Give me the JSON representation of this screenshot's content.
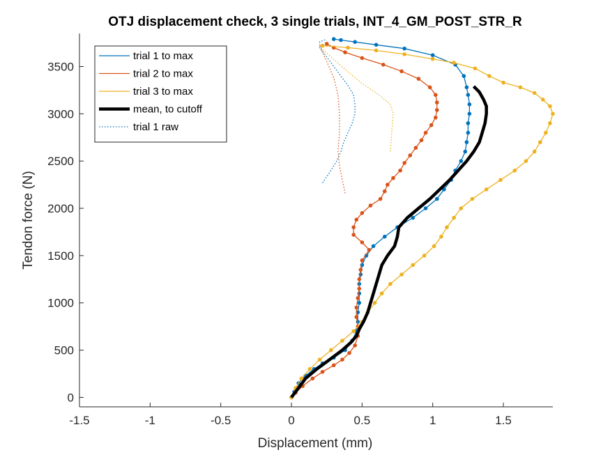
{
  "chart_data": {
    "type": "line",
    "title": "OTJ displacement check, 3 single trials, INT_4_GM_POST_STR_R",
    "xlabel": "Displacement (mm)",
    "ylabel": "Tendon force (N)",
    "xlim": [
      -1.5,
      1.85
    ],
    "ylim": [
      -100,
      3850
    ],
    "xticks": [
      -1.5,
      -1,
      -0.5,
      0,
      0.5,
      1,
      1.5
    ],
    "xtick_labels": [
      "-1.5",
      "-1",
      "-0.5",
      "0",
      "0.5",
      "1",
      "1.5"
    ],
    "yticks": [
      0,
      500,
      1000,
      1500,
      2000,
      2500,
      3000,
      3500
    ],
    "ytick_labels": [
      "0",
      "500",
      "1000",
      "1500",
      "2000",
      "2500",
      "3000",
      "3500"
    ],
    "grid": false,
    "legend_position": "top-left",
    "series": [
      {
        "name": "trial 1 to max",
        "color": "#0072BD",
        "style": "solid-with-markers",
        "points": [
          [
            0,
            0
          ],
          [
            0.02,
            60
          ],
          [
            0.05,
            150
          ],
          [
            0.1,
            230
          ],
          [
            0.16,
            300
          ],
          [
            0.22,
            360
          ],
          [
            0.3,
            420
          ],
          [
            0.38,
            500
          ],
          [
            0.43,
            600
          ],
          [
            0.46,
            700
          ],
          [
            0.47,
            800
          ],
          [
            0.47,
            900
          ],
          [
            0.48,
            1000
          ],
          [
            0.48,
            1100
          ],
          [
            0.48,
            1200
          ],
          [
            0.49,
            1300
          ],
          [
            0.5,
            1400
          ],
          [
            0.53,
            1500
          ],
          [
            0.58,
            1600
          ],
          [
            0.66,
            1700
          ],
          [
            0.75,
            1800
          ],
          [
            0.86,
            1900
          ],
          [
            0.95,
            2000
          ],
          [
            1.03,
            2100
          ],
          [
            1.08,
            2200
          ],
          [
            1.13,
            2300
          ],
          [
            1.16,
            2400
          ],
          [
            1.2,
            2500
          ],
          [
            1.23,
            2600
          ],
          [
            1.24,
            2700
          ],
          [
            1.25,
            2800
          ],
          [
            1.25,
            2900
          ],
          [
            1.26,
            3000
          ],
          [
            1.26,
            3100
          ],
          [
            1.25,
            3200
          ],
          [
            1.24,
            3280
          ],
          [
            1.22,
            3400
          ],
          [
            1.16,
            3520
          ],
          [
            1.0,
            3620
          ],
          [
            0.8,
            3690
          ],
          [
            0.6,
            3730
          ],
          [
            0.45,
            3760
          ],
          [
            0.35,
            3780
          ],
          [
            0.3,
            3790
          ]
        ]
      },
      {
        "name": "trial 2 to max",
        "color": "#D95319",
        "style": "solid-with-markers",
        "points": [
          [
            0,
            0
          ],
          [
            0.03,
            50
          ],
          [
            0.08,
            120
          ],
          [
            0.15,
            200
          ],
          [
            0.22,
            270
          ],
          [
            0.3,
            340
          ],
          [
            0.36,
            400
          ],
          [
            0.41,
            470
          ],
          [
            0.45,
            550
          ],
          [
            0.47,
            650
          ],
          [
            0.47,
            750
          ],
          [
            0.46,
            850
          ],
          [
            0.46,
            950
          ],
          [
            0.47,
            1050
          ],
          [
            0.48,
            1150
          ],
          [
            0.48,
            1250
          ],
          [
            0.49,
            1350
          ],
          [
            0.5,
            1450
          ],
          [
            0.55,
            1560
          ],
          [
            0.5,
            1640
          ],
          [
            0.44,
            1720
          ],
          [
            0.44,
            1800
          ],
          [
            0.46,
            1880
          ],
          [
            0.5,
            1950
          ],
          [
            0.56,
            2030
          ],
          [
            0.63,
            2100
          ],
          [
            0.66,
            2180
          ],
          [
            0.68,
            2250
          ],
          [
            0.72,
            2320
          ],
          [
            0.77,
            2400
          ],
          [
            0.8,
            2480
          ],
          [
            0.84,
            2560
          ],
          [
            0.88,
            2640
          ],
          [
            0.92,
            2720
          ],
          [
            0.95,
            2800
          ],
          [
            0.99,
            2880
          ],
          [
            1.02,
            2960
          ],
          [
            1.03,
            3040
          ],
          [
            1.03,
            3120
          ],
          [
            1.02,
            3200
          ],
          [
            0.98,
            3280
          ],
          [
            0.9,
            3370
          ],
          [
            0.78,
            3450
          ],
          [
            0.65,
            3520
          ],
          [
            0.5,
            3590
          ],
          [
            0.38,
            3650
          ],
          [
            0.3,
            3700
          ],
          [
            0.25,
            3740
          ]
        ]
      },
      {
        "name": "trial 3 to max",
        "color": "#EDB120",
        "style": "solid-with-markers",
        "points": [
          [
            0,
            0
          ],
          [
            0.03,
            100
          ],
          [
            0.07,
            200
          ],
          [
            0.13,
            300
          ],
          [
            0.2,
            400
          ],
          [
            0.28,
            500
          ],
          [
            0.36,
            600
          ],
          [
            0.44,
            700
          ],
          [
            0.5,
            800
          ],
          [
            0.54,
            900
          ],
          [
            0.59,
            1000
          ],
          [
            0.64,
            1100
          ],
          [
            0.7,
            1200
          ],
          [
            0.78,
            1300
          ],
          [
            0.86,
            1400
          ],
          [
            0.94,
            1500
          ],
          [
            1.01,
            1600
          ],
          [
            1.06,
            1700
          ],
          [
            1.1,
            1800
          ],
          [
            1.15,
            1900
          ],
          [
            1.2,
            2000
          ],
          [
            1.28,
            2100
          ],
          [
            1.38,
            2200
          ],
          [
            1.48,
            2300
          ],
          [
            1.58,
            2400
          ],
          [
            1.66,
            2500
          ],
          [
            1.72,
            2600
          ],
          [
            1.76,
            2700
          ],
          [
            1.8,
            2800
          ],
          [
            1.83,
            2900
          ],
          [
            1.85,
            3000
          ],
          [
            1.83,
            3080
          ],
          [
            1.78,
            3150
          ],
          [
            1.72,
            3220
          ],
          [
            1.62,
            3280
          ],
          [
            1.5,
            3330
          ],
          [
            1.4,
            3400
          ],
          [
            1.3,
            3480
          ],
          [
            1.15,
            3540
          ],
          [
            1.0,
            3580
          ],
          [
            0.8,
            3630
          ],
          [
            0.6,
            3670
          ],
          [
            0.4,
            3700
          ],
          [
            0.22,
            3720
          ]
        ]
      },
      {
        "name": "mean, to cutoff",
        "color": "#000000",
        "style": "thick-solid",
        "points": [
          [
            0,
            0
          ],
          [
            0.05,
            100
          ],
          [
            0.1,
            200
          ],
          [
            0.18,
            300
          ],
          [
            0.27,
            400
          ],
          [
            0.36,
            500
          ],
          [
            0.42,
            580
          ],
          [
            0.46,
            650
          ],
          [
            0.48,
            720
          ],
          [
            0.51,
            800
          ],
          [
            0.54,
            900
          ],
          [
            0.56,
            1000
          ],
          [
            0.58,
            1100
          ],
          [
            0.6,
            1200
          ],
          [
            0.62,
            1300
          ],
          [
            0.64,
            1400
          ],
          [
            0.68,
            1500
          ],
          [
            0.73,
            1600
          ],
          [
            0.75,
            1700
          ],
          [
            0.76,
            1800
          ],
          [
            0.82,
            1900
          ],
          [
            0.9,
            2000
          ],
          [
            0.98,
            2100
          ],
          [
            1.05,
            2200
          ],
          [
            1.12,
            2300
          ],
          [
            1.18,
            2400
          ],
          [
            1.24,
            2500
          ],
          [
            1.29,
            2600
          ],
          [
            1.33,
            2700
          ],
          [
            1.35,
            2800
          ],
          [
            1.37,
            2900
          ],
          [
            1.38,
            3000
          ],
          [
            1.38,
            3080
          ],
          [
            1.36,
            3150
          ],
          [
            1.33,
            3230
          ],
          [
            1.29,
            3290
          ]
        ]
      },
      {
        "name": "trial 1 raw",
        "color": "#0072BD",
        "style": "dotted",
        "points": [
          [
            0.22,
            2270
          ],
          [
            0.27,
            2380
          ],
          [
            0.32,
            2500
          ],
          [
            0.35,
            2600
          ],
          [
            0.37,
            2700
          ],
          [
            0.4,
            2800
          ],
          [
            0.43,
            2900
          ],
          [
            0.45,
            3000
          ],
          [
            0.45,
            3100
          ],
          [
            0.44,
            3200
          ],
          [
            0.4,
            3300
          ],
          [
            0.35,
            3400
          ],
          [
            0.3,
            3500
          ],
          [
            0.25,
            3600
          ],
          [
            0.2,
            3700
          ],
          [
            0.2,
            3760
          ],
          [
            0.25,
            3790
          ]
        ]
      },
      {
        "name": "",
        "color": "#D95319",
        "style": "dotted",
        "points": [
          [
            0.38,
            2160
          ],
          [
            0.36,
            2300
          ],
          [
            0.34,
            2450
          ],
          [
            0.33,
            2600
          ],
          [
            0.34,
            2800
          ],
          [
            0.34,
            3000
          ],
          [
            0.33,
            3200
          ],
          [
            0.3,
            3380
          ],
          [
            0.26,
            3520
          ],
          [
            0.22,
            3650
          ],
          [
            0.2,
            3720
          ]
        ]
      },
      {
        "name": "",
        "color": "#EDB120",
        "style": "dotted",
        "points": [
          [
            0.7,
            2600
          ],
          [
            0.71,
            2800
          ],
          [
            0.72,
            3000
          ],
          [
            0.7,
            3100
          ],
          [
            0.62,
            3200
          ],
          [
            0.5,
            3320
          ],
          [
            0.38,
            3470
          ],
          [
            0.28,
            3600
          ],
          [
            0.22,
            3680
          ],
          [
            0.2,
            3730
          ]
        ]
      }
    ]
  }
}
